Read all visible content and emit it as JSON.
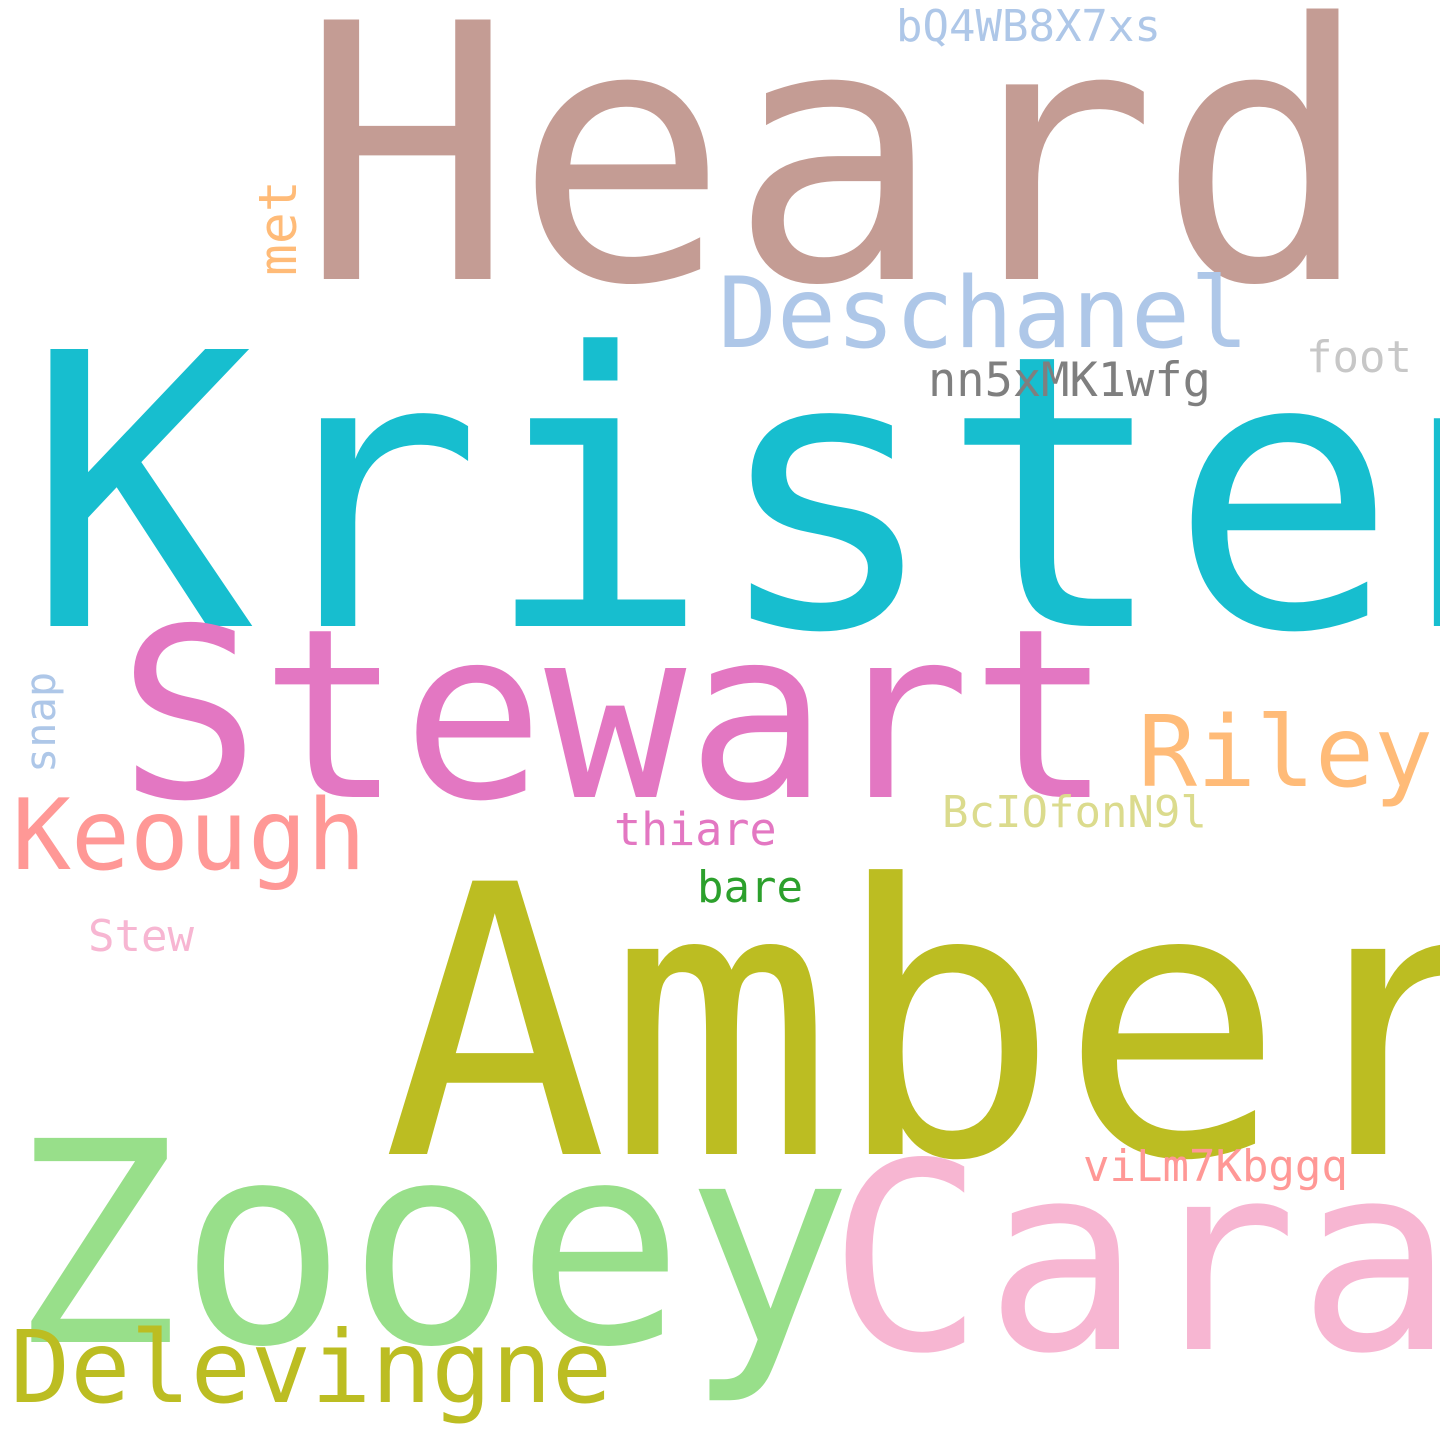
{
  "words": {
    "heard": {
      "text": "Heard",
      "color": "#c49c94"
    },
    "kristen": {
      "text": "Kristen",
      "color": "#17becf"
    },
    "stewart": {
      "text": "Stewart",
      "color": "#e377c2"
    },
    "amber": {
      "text": "Amber",
      "color": "#bcbd22"
    },
    "zooey": {
      "text": "Zooey",
      "color": "#98df8a"
    },
    "cara": {
      "text": "Cara",
      "color": "#f7b6d2"
    },
    "delevingne": {
      "text": "Delevingne",
      "color": "#bcbd22"
    },
    "deschanel": {
      "text": "Deschanel",
      "color": "#aec7e8"
    },
    "keough": {
      "text": "Keough",
      "color": "#ff9896"
    },
    "riley": {
      "text": "Riley",
      "color": "#ffbb78"
    },
    "met": {
      "text": "met",
      "color": "#ffbb78"
    },
    "bq4": {
      "text": "bQ4WB8X7xs",
      "color": "#aec7e8"
    },
    "nn5": {
      "text": "nn5xMK1wfg",
      "color": "#7f7f7f"
    },
    "foot": {
      "text": "foot",
      "color": "#c7c7c7"
    },
    "snap": {
      "text": "snap",
      "color": "#aec7e8"
    },
    "bcio": {
      "text": "BcIOfonN9l",
      "color": "#dbdb8d"
    },
    "thiare": {
      "text": "thiare",
      "color": "#e377c2"
    },
    "bare": {
      "text": "bare",
      "color": "#2ca02c"
    },
    "stew": {
      "text": "Stew",
      "color": "#f7b6d2"
    },
    "vilm": {
      "text": "viLm7Kbggq",
      "color": "#ff9896"
    }
  }
}
